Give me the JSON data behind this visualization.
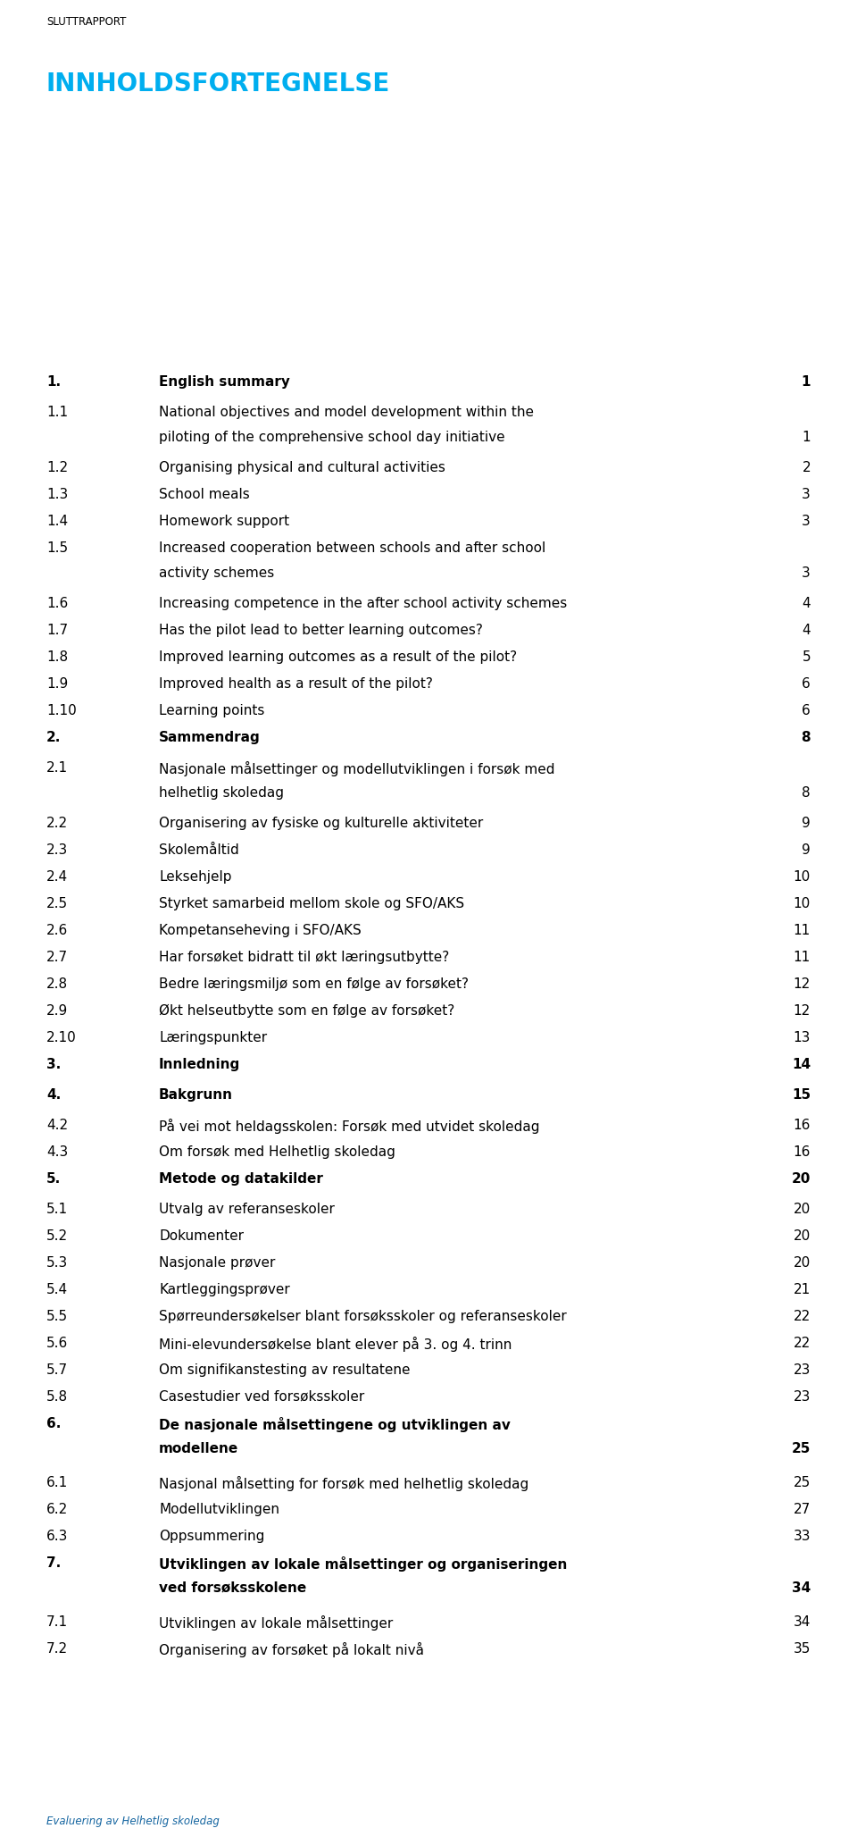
{
  "header_text": "SLUTTRAPPORT",
  "title": "INNHOLDSFORTEGNELSE",
  "footer": "Evaluering av Helhetlig skoledag",
  "background_color": "#ffffff",
  "title_color": "#00AEEF",
  "header_color": "#000000",
  "text_color": "#000000",
  "fig_width": 9.6,
  "fig_height": 20.65,
  "dpi": 100,
  "entries": [
    {
      "num": "1.",
      "text": "English summary",
      "page": "1",
      "bold": true,
      "level": 1,
      "multiline": false
    },
    {
      "num": "1.1",
      "text": "National objectives and model development within the",
      "text2": "piloting of the comprehensive school day initiative",
      "page": "1",
      "bold": false,
      "level": 2,
      "multiline": true
    },
    {
      "num": "1.2",
      "text": "Organising physical and cultural activities",
      "page": "2",
      "bold": false,
      "level": 2,
      "multiline": false
    },
    {
      "num": "1.3",
      "text": "School meals",
      "page": "3",
      "bold": false,
      "level": 2,
      "multiline": false
    },
    {
      "num": "1.4",
      "text": "Homework support",
      "page": "3",
      "bold": false,
      "level": 2,
      "multiline": false
    },
    {
      "num": "1.5",
      "text": "Increased cooperation between schools and after school",
      "text2": "activity schemes",
      "page": "3",
      "bold": false,
      "level": 2,
      "multiline": true
    },
    {
      "num": "1.6",
      "text": "Increasing competence in the after school activity schemes",
      "page": "4",
      "bold": false,
      "level": 2,
      "multiline": false
    },
    {
      "num": "1.7",
      "text": "Has the pilot lead to better learning outcomes?",
      "page": "4",
      "bold": false,
      "level": 2,
      "multiline": false
    },
    {
      "num": "1.8",
      "text": "Improved learning outcomes as a result of the pilot?",
      "page": "5",
      "bold": false,
      "level": 2,
      "multiline": false
    },
    {
      "num": "1.9",
      "text": "Improved health as a result of the pilot?",
      "page": "6",
      "bold": false,
      "level": 2,
      "multiline": false
    },
    {
      "num": "1.10",
      "text": "Learning points",
      "page": "6",
      "bold": false,
      "level": 2,
      "multiline": false
    },
    {
      "num": "2.",
      "text": "Sammendrag",
      "page": "8",
      "bold": true,
      "level": 1,
      "multiline": false
    },
    {
      "num": "2.1",
      "text": "Nasjonale målsettinger og modellutviklingen i forsøk med",
      "text2": "helhetlig skoledag",
      "page": "8",
      "bold": false,
      "level": 2,
      "multiline": true
    },
    {
      "num": "2.2",
      "text": "Organisering av fysiske og kulturelle aktiviteter",
      "page": "9",
      "bold": false,
      "level": 2,
      "multiline": false
    },
    {
      "num": "2.3",
      "text": "Skolemåltid",
      "page": "9",
      "bold": false,
      "level": 2,
      "multiline": false
    },
    {
      "num": "2.4",
      "text": "Leksehjelp",
      "page": "10",
      "bold": false,
      "level": 2,
      "multiline": false
    },
    {
      "num": "2.5",
      "text": "Styrket samarbeid mellom skole og SFO/AKS",
      "page": "10",
      "bold": false,
      "level": 2,
      "multiline": false
    },
    {
      "num": "2.6",
      "text": "Kompetanseheving i SFO/AKS",
      "page": "11",
      "bold": false,
      "level": 2,
      "multiline": false
    },
    {
      "num": "2.7",
      "text": "Har forsøket bidratt til økt læringsutbytte?",
      "page": "11",
      "bold": false,
      "level": 2,
      "multiline": false
    },
    {
      "num": "2.8",
      "text": "Bedre læringsmiljø som en følge av forsøket?",
      "page": "12",
      "bold": false,
      "level": 2,
      "multiline": false
    },
    {
      "num": "2.9",
      "text": "Økt helseutbytte som en følge av forsøket?",
      "page": "12",
      "bold": false,
      "level": 2,
      "multiline": false
    },
    {
      "num": "2.10",
      "text": "Læringspunkter",
      "page": "13",
      "bold": false,
      "level": 2,
      "multiline": false
    },
    {
      "num": "3.",
      "text": "Innledning",
      "page": "14",
      "bold": true,
      "level": 1,
      "multiline": false
    },
    {
      "num": "4.",
      "text": "Bakgrunn",
      "page": "15",
      "bold": true,
      "level": 1,
      "multiline": false
    },
    {
      "num": "4.2",
      "text": "På vei mot heldagsskolen: Forsøk med utvidet skoledag",
      "page": "16",
      "bold": false,
      "level": 2,
      "multiline": false
    },
    {
      "num": "4.3",
      "text": "Om forsøk med Helhetlig skoledag",
      "page": "16",
      "bold": false,
      "level": 2,
      "multiline": false
    },
    {
      "num": "5.",
      "text": "Metode og datakilder",
      "page": "20",
      "bold": true,
      "level": 1,
      "multiline": false
    },
    {
      "num": "5.1",
      "text": "Utvalg av referanseskoler",
      "page": "20",
      "bold": false,
      "level": 2,
      "multiline": false
    },
    {
      "num": "5.2",
      "text": "Dokumenter",
      "page": "20",
      "bold": false,
      "level": 2,
      "multiline": false
    },
    {
      "num": "5.3",
      "text": "Nasjonale prøver",
      "page": "20",
      "bold": false,
      "level": 2,
      "multiline": false
    },
    {
      "num": "5.4",
      "text": "Kartleggingsprøver",
      "page": "21",
      "bold": false,
      "level": 2,
      "multiline": false
    },
    {
      "num": "5.5",
      "text": "Spørreundersøkelser blant forsøksskoler og referanseskoler",
      "page": "22",
      "bold": false,
      "level": 2,
      "multiline": false
    },
    {
      "num": "5.6",
      "text": "Mini-elevundersøkelse blant elever på 3. og 4. trinn",
      "page": "22",
      "bold": false,
      "level": 2,
      "multiline": false
    },
    {
      "num": "5.7",
      "text": "Om signifikanstesting av resultatene",
      "page": "23",
      "bold": false,
      "level": 2,
      "multiline": false
    },
    {
      "num": "5.8",
      "text": "Casestudier ved forsøksskoler",
      "page": "23",
      "bold": false,
      "level": 2,
      "multiline": false
    },
    {
      "num": "6.",
      "text": "De nasjonale målsettingene og utviklingen av",
      "text2": "modellene",
      "page": "25",
      "bold": true,
      "level": 1,
      "multiline": true
    },
    {
      "num": "6.1",
      "text": "Nasjonal målsetting for forsøk med helhetlig skoledag",
      "page": "25",
      "bold": false,
      "level": 2,
      "multiline": false
    },
    {
      "num": "6.2",
      "text": "Modellutviklingen",
      "page": "27",
      "bold": false,
      "level": 2,
      "multiline": false
    },
    {
      "num": "6.3",
      "text": "Oppsummering",
      "page": "33",
      "bold": false,
      "level": 2,
      "multiline": false
    },
    {
      "num": "7.",
      "text": "Utviklingen av lokale målsettinger og organiseringen",
      "text2": "ved forsøksskolene",
      "page": "34",
      "bold": true,
      "level": 1,
      "multiline": true
    },
    {
      "num": "7.1",
      "text": "Utviklingen av lokale målsettinger",
      "page": "34",
      "bold": false,
      "level": 2,
      "multiline": false
    },
    {
      "num": "7.2",
      "text": "Organisering av forsøket på lokalt nivå",
      "page": "35",
      "bold": false,
      "level": 2,
      "multiline": false
    }
  ]
}
